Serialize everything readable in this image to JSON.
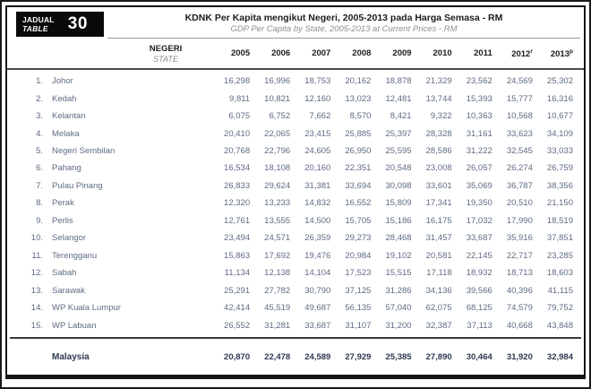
{
  "table_box": {
    "label_line1": "JADUAL",
    "label_line2": "TABLE",
    "number": "30"
  },
  "header": {
    "title_my": "KDNK Per Kapita mengikut Negeri, 2005-2013 pada Harga Semasa - RM",
    "title_en": "GDP Per Capita by State, 2005-2013 at Current Prices - RM"
  },
  "columns": {
    "state_label_my": "NEGERI",
    "state_label_en": "STATE",
    "years": [
      {
        "label": "2005",
        "sup": ""
      },
      {
        "label": "2006",
        "sup": ""
      },
      {
        "label": "2007",
        "sup": ""
      },
      {
        "label": "2008",
        "sup": ""
      },
      {
        "label": "2009",
        "sup": ""
      },
      {
        "label": "2010",
        "sup": ""
      },
      {
        "label": "2011",
        "sup": ""
      },
      {
        "label": "2012",
        "sup": "r"
      },
      {
        "label": "2013",
        "sup": "p"
      }
    ]
  },
  "rows": [
    {
      "num": "1.",
      "state": "Johor",
      "values": [
        "16,298",
        "16,996",
        "18,753",
        "20,162",
        "18,878",
        "21,329",
        "23,562",
        "24,569",
        "25,302"
      ]
    },
    {
      "num": "2.",
      "state": "Kedah",
      "values": [
        "9,811",
        "10,821",
        "12,160",
        "13,023",
        "12,481",
        "13,744",
        "15,393",
        "15,777",
        "16,316"
      ]
    },
    {
      "num": "3.",
      "state": "Kelantan",
      "values": [
        "6,075",
        "6,752",
        "7,662",
        "8,570",
        "8,421",
        "9,322",
        "10,363",
        "10,568",
        "10,677"
      ]
    },
    {
      "num": "4.",
      "state": "Melaka",
      "values": [
        "20,410",
        "22,065",
        "23,415",
        "25,885",
        "25,397",
        "28,328",
        "31,161",
        "33,623",
        "34,109"
      ]
    },
    {
      "num": "5.",
      "state": "Negeri Sembilan",
      "values": [
        "20,768",
        "22,796",
        "24,605",
        "26,950",
        "25,595",
        "28,586",
        "31,222",
        "32,545",
        "33,033"
      ]
    },
    {
      "num": "6.",
      "state": "Pahang",
      "values": [
        "16,534",
        "18,108",
        "20,160",
        "22,351",
        "20,548",
        "23,008",
        "26,057",
        "26,274",
        "26,759"
      ]
    },
    {
      "num": "7.",
      "state": "Pulau Pinang",
      "values": [
        "26,833",
        "29,624",
        "31,381",
        "33,694",
        "30,098",
        "33,601",
        "35,069",
        "36,787",
        "38,356"
      ]
    },
    {
      "num": "8.",
      "state": "Perak",
      "values": [
        "12,320",
        "13,233",
        "14,832",
        "16,552",
        "15,809",
        "17,341",
        "19,350",
        "20,510",
        "21,150"
      ]
    },
    {
      "num": "9.",
      "state": "Perlis",
      "values": [
        "12,761",
        "13,555",
        "14,500",
        "15,705",
        "15,186",
        "16,175",
        "17,032",
        "17,990",
        "18,519"
      ]
    },
    {
      "num": "10.",
      "state": "Selangor",
      "values": [
        "23,494",
        "24,571",
        "26,359",
        "29,273",
        "28,468",
        "31,457",
        "33,687",
        "35,916",
        "37,851"
      ]
    },
    {
      "num": "11.",
      "state": "Terengganu",
      "values": [
        "15,863",
        "17,692",
        "19,476",
        "20,984",
        "19,102",
        "20,581",
        "22,145",
        "22,717",
        "23,285"
      ]
    },
    {
      "num": "12.",
      "state": "Sabah",
      "values": [
        "11,134",
        "12,138",
        "14,104",
        "17,523",
        "15,515",
        "17,118",
        "18,932",
        "18,713",
        "18,603"
      ]
    },
    {
      "num": "13.",
      "state": "Sarawak",
      "values": [
        "25,291",
        "27,782",
        "30,790",
        "37,125",
        "31,286",
        "34,136",
        "39,566",
        "40,396",
        "41,115"
      ]
    },
    {
      "num": "14.",
      "state": "WP Kuala Lumpur",
      "values": [
        "42,414",
        "45,519",
        "49,687",
        "56,135",
        "57,040",
        "62,075",
        "68,125",
        "74,579",
        "79,752"
      ]
    },
    {
      "num": "15.",
      "state": "WP Labuan",
      "values": [
        "26,552",
        "31,281",
        "33,687",
        "31,107",
        "31,200",
        "32,387",
        "37,113",
        "40,668",
        "43,848"
      ]
    }
  ],
  "total_row": {
    "state": "Malaysia",
    "values": [
      "20,870",
      "22,478",
      "24,589",
      "27,929",
      "25,385",
      "27,890",
      "30,464",
      "31,920",
      "32,984"
    ]
  },
  "colors": {
    "body_text": "#5e6c83",
    "header_text": "#1c1c1c",
    "subtitle_text": "#8f8f8f",
    "frame": "#161616"
  }
}
